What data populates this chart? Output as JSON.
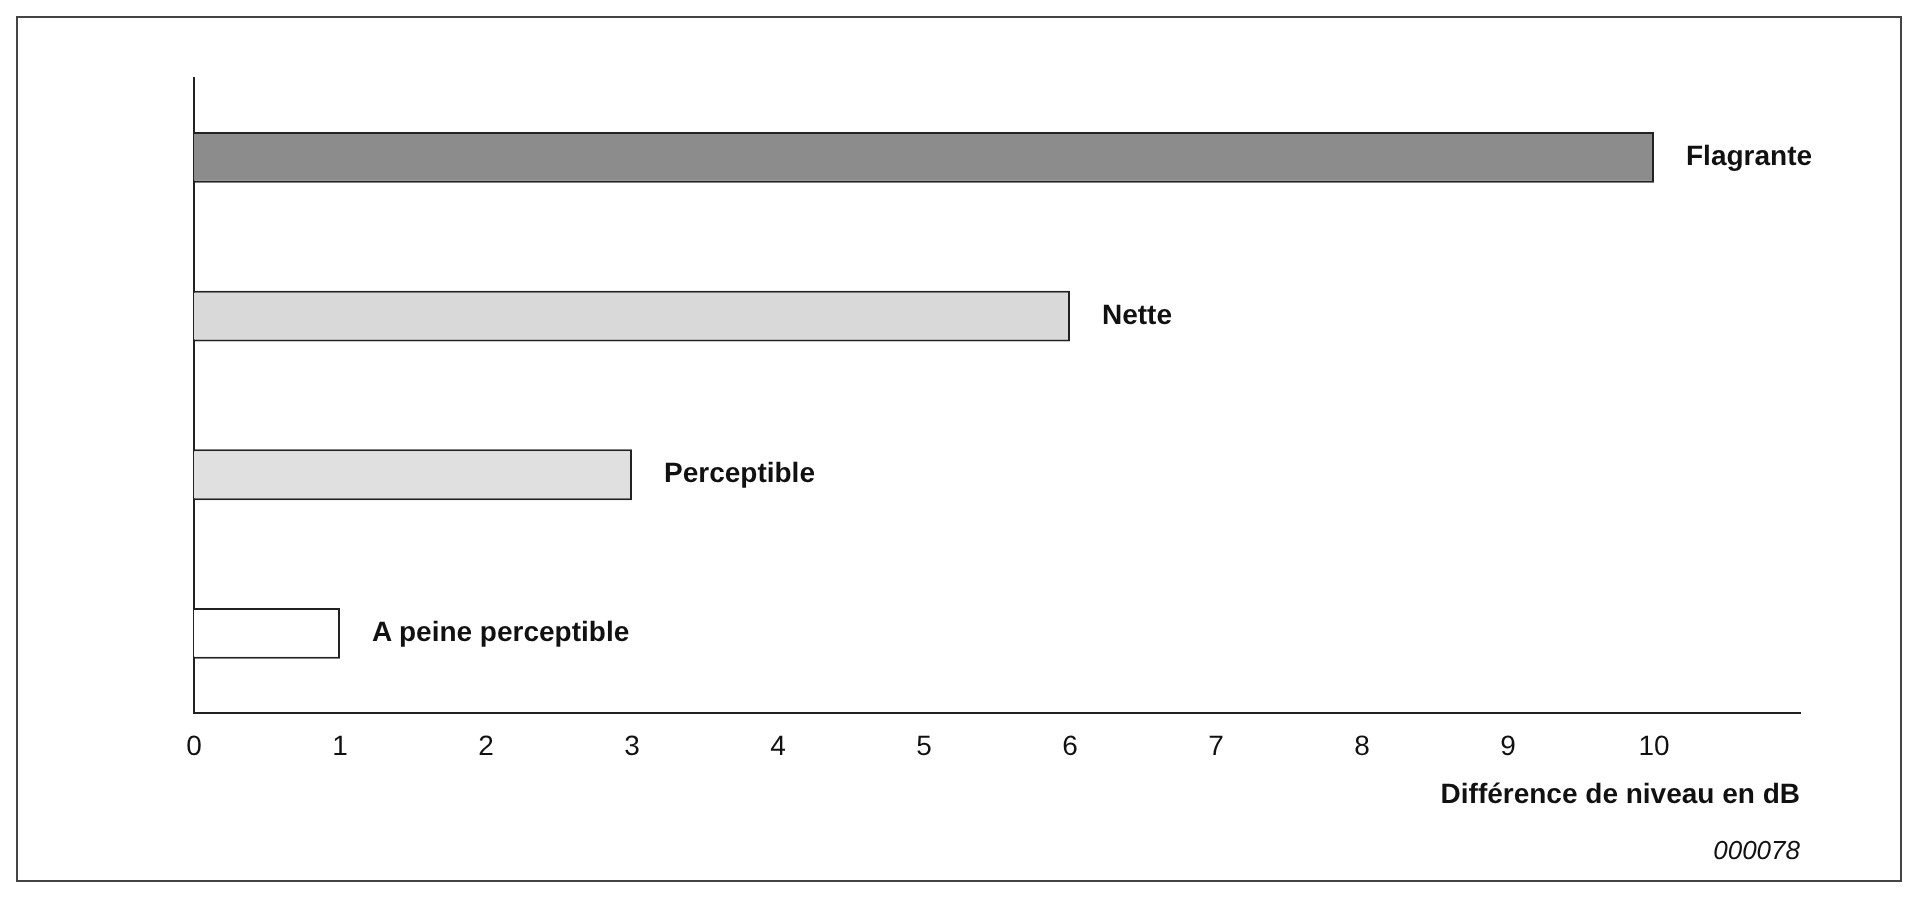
{
  "chart_data": {
    "type": "bar",
    "orientation": "horizontal",
    "categories": [
      "Flagrante",
      "Nette",
      "Perceptible",
      "A peine perceptible"
    ],
    "values": [
      10,
      6,
      3,
      1
    ],
    "colors": [
      "#8c8c8c",
      "#d9d9d9",
      "#e0e0e0",
      "#ffffff"
    ],
    "xlim": [
      0,
      11
    ],
    "xticks": [
      0,
      1,
      2,
      3,
      4,
      5,
      6,
      7,
      8,
      9,
      10
    ],
    "xlabel": "Différence de niveau en dB",
    "annotations": [
      "000078"
    ],
    "grid": false,
    "legend": false,
    "tick_labels": "x"
  }
}
